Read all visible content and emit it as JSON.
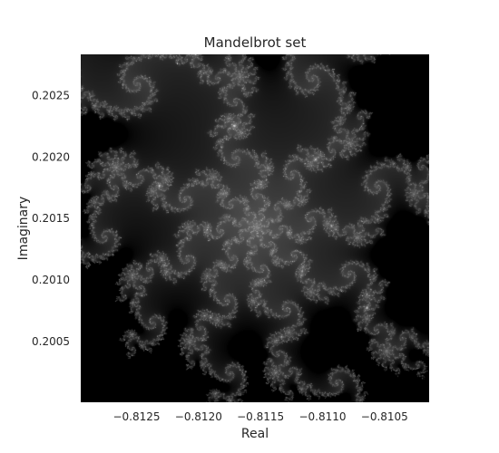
{
  "chart_data": {
    "type": "heatmap",
    "title": "Mandelbrot set",
    "xlabel": "Real",
    "ylabel": "Imaginary",
    "xlim": [
      -0.81295,
      -0.81014
    ],
    "ylim": [
      0.200005,
      0.202835
    ],
    "x_ticks": [
      -0.8125,
      -0.812,
      -0.8115,
      -0.811,
      -0.8105
    ],
    "x_tick_labels": [
      "−0.8125",
      "−0.8120",
      "−0.8115",
      "−0.8110",
      "−0.8105"
    ],
    "y_ticks": [
      0.2005,
      0.201,
      0.2015,
      0.202,
      0.2025
    ],
    "y_tick_labels": [
      "0.2005",
      "0.2010",
      "0.2015",
      "0.2020",
      "0.2025"
    ],
    "colormap": "grayscale",
    "grid": false,
    "background": "#000000"
  }
}
